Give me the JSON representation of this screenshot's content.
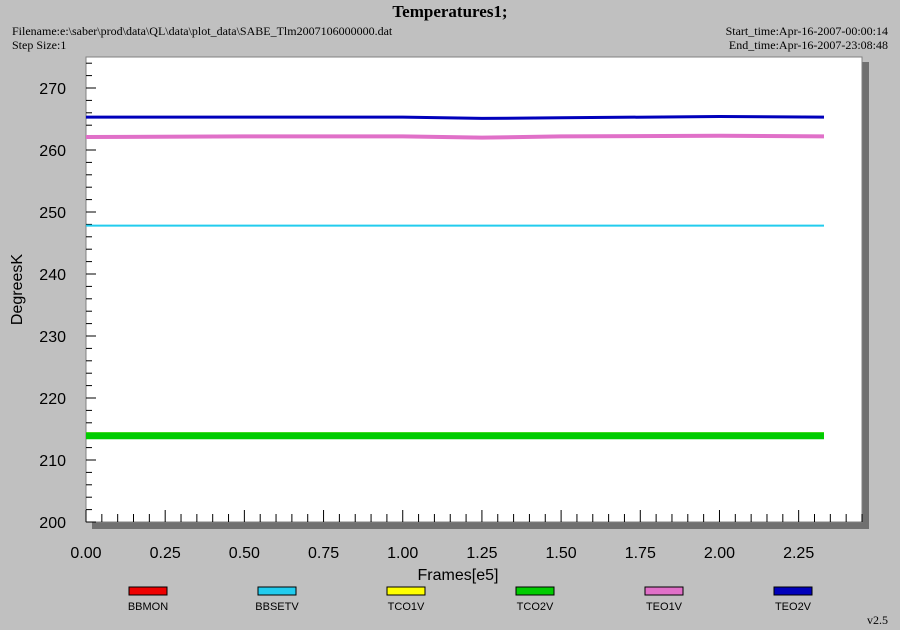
{
  "header": {
    "title": "Temperatures1;",
    "filename": "Filename:e:\\saber\\prod\\data\\QL\\data\\plot_data\\SABE_Tlm2007106000000.dat",
    "step_size": "Step Size:1",
    "start_time": "Start_time:Apr-16-2007-00:00:14",
    "end_time": "End_time:Apr-16-2007-23:08:48"
  },
  "version": "v2.5",
  "chart_data": {
    "type": "line",
    "title": "Temperatures1;",
    "xlabel": "Frames[e5]",
    "ylabel": "DegreesK",
    "xlim": [
      0,
      2.45
    ],
    "ylim": [
      200,
      275
    ],
    "x_ticks": [
      "0.00",
      "0.25",
      "0.50",
      "0.75",
      "1.00",
      "1.25",
      "1.50",
      "1.75",
      "2.00",
      "2.25"
    ],
    "y_ticks": [
      "200",
      "210",
      "220",
      "230",
      "240",
      "250",
      "260",
      "270"
    ],
    "legend_position": "bottom",
    "series": [
      {
        "name": "BBMON",
        "color": "#ee0000",
        "x": [],
        "y": []
      },
      {
        "name": "BBSETV",
        "color": "#22ccee",
        "x": [
          0,
          0.5,
          1.0,
          1.5,
          2.0,
          2.33
        ],
        "y": [
          247.8,
          247.8,
          247.8,
          247.8,
          247.8,
          247.8
        ]
      },
      {
        "name": "TCO1V",
        "color": "#ffff00",
        "x": [
          0,
          0.5,
          1.0,
          1.5,
          2.0,
          2.33
        ],
        "y": [
          214.3,
          214.3,
          214.3,
          214.3,
          214.3,
          214.3
        ]
      },
      {
        "name": "TCO2V",
        "color": "#00cc00",
        "x": [
          0,
          0.5,
          1.0,
          1.5,
          2.0,
          2.33
        ],
        "y": [
          213.9,
          213.9,
          213.9,
          213.9,
          213.9,
          213.9
        ]
      },
      {
        "name": "TEO1V",
        "color": "#e070c8",
        "x": [
          0,
          0.5,
          1.0,
          1.25,
          1.5,
          2.0,
          2.33
        ],
        "y": [
          262.1,
          262.2,
          262.2,
          262.0,
          262.2,
          262.3,
          262.2
        ]
      },
      {
        "name": "TEO2V",
        "color": "#0000bb",
        "x": [
          0,
          0.5,
          1.0,
          1.25,
          1.5,
          2.0,
          2.33
        ],
        "y": [
          265.3,
          265.3,
          265.3,
          265.1,
          265.2,
          265.4,
          265.3
        ]
      }
    ]
  }
}
